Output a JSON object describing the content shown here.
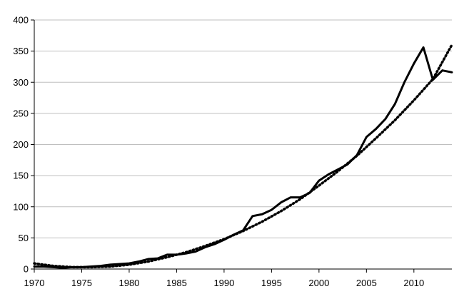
{
  "chart_data": {
    "type": "line",
    "title": "",
    "xlabel": "",
    "ylabel": "",
    "xlim": [
      1970,
      2014
    ],
    "ylim": [
      0,
      400
    ],
    "grid": "horizontal",
    "legend": "none",
    "x_ticks": [
      1970,
      1975,
      1980,
      1985,
      1990,
      1995,
      2000,
      2005,
      2010
    ],
    "y_ticks": [
      0,
      50,
      100,
      150,
      200,
      250,
      300,
      350,
      400
    ],
    "x_tick_labels": [
      "1970",
      "1975",
      "1980",
      "1985",
      "1990",
      "1995",
      "2000",
      "2005",
      "2010"
    ],
    "y_tick_labels": [
      "0",
      "50",
      "100",
      "150",
      "200",
      "250",
      "300",
      "350",
      "400"
    ],
    "colors": {
      "line": "#000000",
      "grid": "#bfbfbf",
      "axis": "#000000"
    },
    "series": [
      {
        "style": "solid",
        "x": [
          1970,
          1971,
          1972,
          1973,
          1974,
          1975,
          1976,
          1977,
          1978,
          1979,
          1980,
          1981,
          1982,
          1983,
          1984,
          1985,
          1986,
          1987,
          1988,
          1989,
          1990,
          1991,
          1992,
          1993,
          1994,
          1995,
          1996,
          1997,
          1998,
          1999,
          2000,
          2001,
          2002,
          2003,
          2004,
          2005,
          2006,
          2007,
          2008,
          2009,
          2010,
          2011,
          2012,
          2013,
          2014
        ],
        "values": [
          4,
          4,
          3,
          2,
          3,
          3,
          4,
          5,
          7,
          8,
          9,
          12,
          16,
          17,
          23,
          23,
          25,
          28,
          35,
          40,
          47,
          55,
          62,
          85,
          88,
          95,
          107,
          115,
          115,
          122,
          142,
          152,
          160,
          168,
          183,
          212,
          225,
          241,
          265,
          300,
          330,
          356,
          304,
          319,
          316
        ]
      },
      {
        "style": "dotted",
        "x": [
          1970,
          1972,
          1974,
          1976,
          1978,
          1980,
          1982,
          1984,
          1986,
          1988,
          1990,
          1992,
          1994,
          1996,
          1998,
          2000,
          2002,
          2004,
          2006,
          2008,
          2010,
          2012,
          2014
        ],
        "values": [
          9,
          5,
          3,
          3,
          4,
          7,
          12,
          19,
          27,
          37,
          48,
          61,
          76,
          93,
          112,
          134,
          157,
          182,
          210,
          239,
          271,
          305,
          360
        ]
      }
    ]
  }
}
